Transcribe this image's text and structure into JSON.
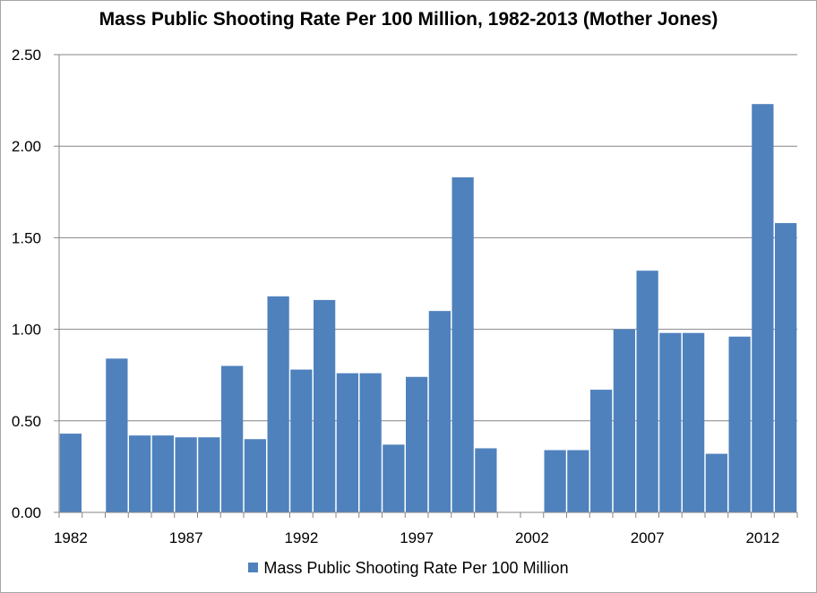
{
  "chart_data": {
    "type": "bar",
    "title": "Mass Public Shooting Rate Per 100 Million, 1982-2013 (Mother Jones)",
    "xlabel": "",
    "ylabel": "",
    "ylim": [
      0,
      2.5
    ],
    "y_ticks": [
      "0.00",
      "0.50",
      "1.00",
      "1.50",
      "2.00",
      "2.50"
    ],
    "y_tick_values": [
      0,
      0.5,
      1.0,
      1.5,
      2.0,
      2.5
    ],
    "x_tick_labels": [
      "1982",
      "1987",
      "1992",
      "1997",
      "2002",
      "2007",
      "2012"
    ],
    "grid": true,
    "legend_position": "bottom",
    "bar_color": "#4f81bd",
    "categories": [
      1982,
      1983,
      1984,
      1985,
      1986,
      1987,
      1988,
      1989,
      1990,
      1991,
      1992,
      1993,
      1994,
      1995,
      1996,
      1997,
      1998,
      1999,
      2000,
      2001,
      2002,
      2003,
      2004,
      2005,
      2006,
      2007,
      2008,
      2009,
      2010,
      2011,
      2012,
      2013
    ],
    "series": [
      {
        "name": "Mass Public Shooting Rate Per 100 Million",
        "values": [
          0.43,
          0,
          0.84,
          0.42,
          0.42,
          0.41,
          0.41,
          0.8,
          0.4,
          1.18,
          0.78,
          1.16,
          0.76,
          0.76,
          0.37,
          0.74,
          1.1,
          1.83,
          0.35,
          0,
          0,
          0.34,
          0.34,
          0.67,
          1.0,
          1.32,
          0.98,
          0.98,
          0.32,
          0.96,
          2.23,
          1.58
        ]
      }
    ]
  }
}
